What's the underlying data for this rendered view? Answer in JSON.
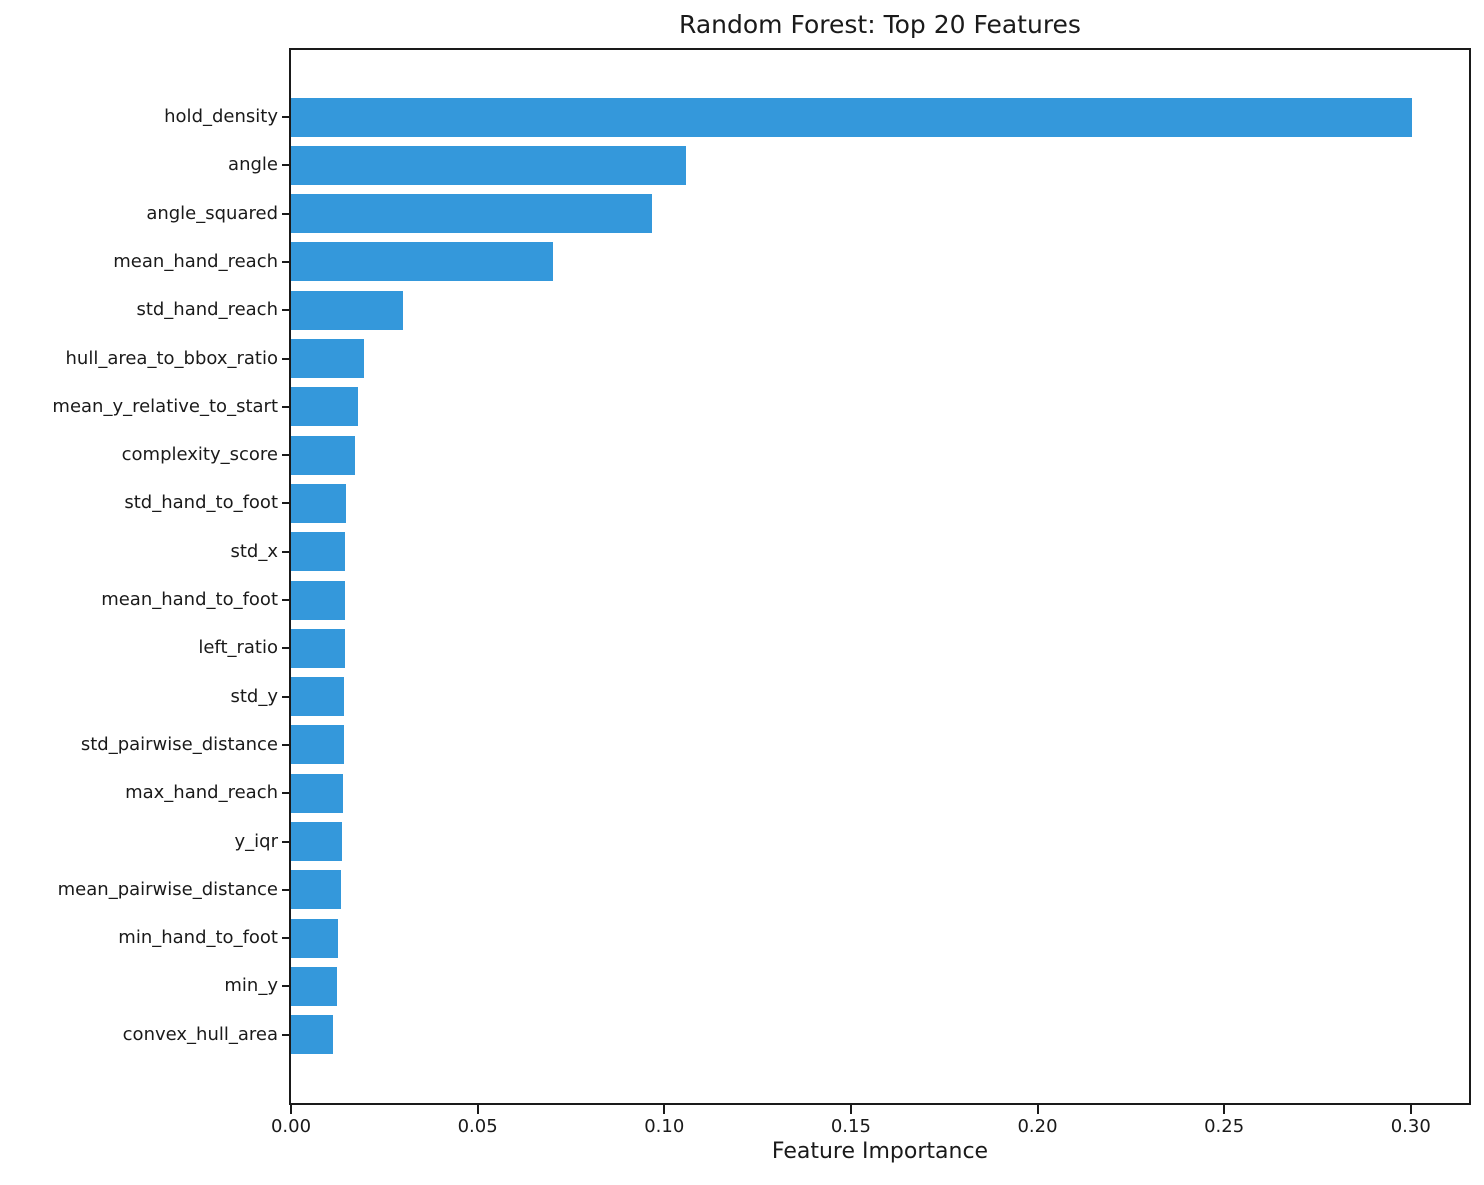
{
  "chart_data": {
    "type": "bar",
    "orientation": "horizontal",
    "title": "Random Forest: Top 20 Features",
    "xlabel": "Feature Importance",
    "ylabel": "",
    "bar_color": "#3498db",
    "axis_color": "#1a1a1a",
    "grid": false,
    "legend": false,
    "xlim": [
      0,
      0.3156
    ],
    "xticks": [
      0.0,
      0.05,
      0.1,
      0.15,
      0.2,
      0.25,
      0.3
    ],
    "xtick_labels": [
      "0.00",
      "0.05",
      "0.10",
      "0.15",
      "0.20",
      "0.25",
      "0.30"
    ],
    "categories": [
      "hold_density",
      "angle",
      "angle_squared",
      "mean_hand_reach",
      "std_hand_reach",
      "hull_area_to_bbox_ratio",
      "mean_y_relative_to_start",
      "complexity_score",
      "std_hand_to_foot",
      "std_x",
      "mean_hand_to_foot",
      "left_ratio",
      "std_y",
      "std_pairwise_distance",
      "max_hand_reach",
      "y_iqr",
      "mean_pairwise_distance",
      "min_hand_to_foot",
      "min_y",
      "convex_hull_area"
    ],
    "values": [
      0.3004,
      0.1058,
      0.0966,
      0.0703,
      0.03,
      0.0195,
      0.0179,
      0.0171,
      0.0147,
      0.0146,
      0.0145,
      0.0144,
      0.0143,
      0.0142,
      0.0139,
      0.0136,
      0.0133,
      0.0127,
      0.0124,
      0.0112
    ]
  }
}
